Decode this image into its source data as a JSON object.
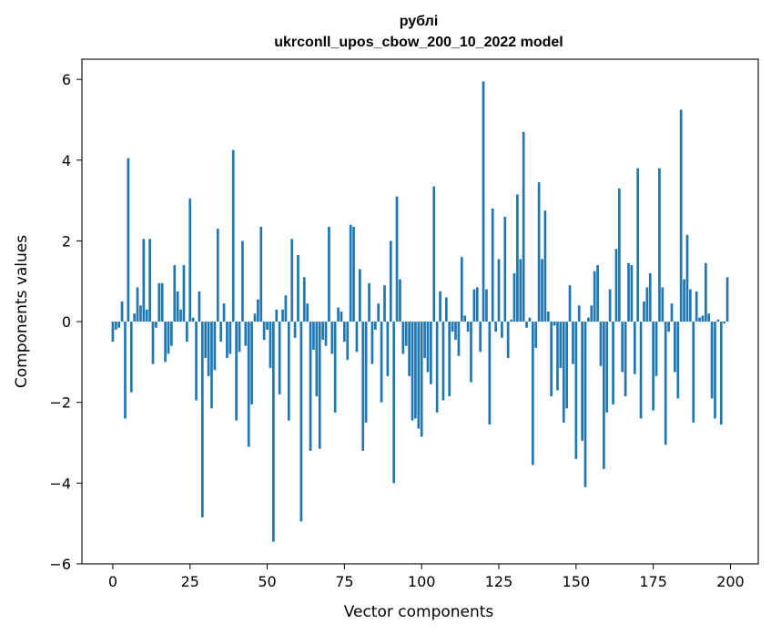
{
  "chart_data": {
    "type": "bar",
    "title": "рублі",
    "subtitle": "ukrconll_upos_cbow_200_10_2022 model",
    "xlabel": "Vector components",
    "ylabel": "Components values",
    "xlim": [
      -10,
      209
    ],
    "ylim": [
      -6,
      6.5
    ],
    "xticks": [
      0,
      25,
      50,
      75,
      100,
      125,
      150,
      175,
      200
    ],
    "yticks": [
      -6,
      -4,
      -2,
      0,
      2,
      4,
      6
    ],
    "bar_color": "#1f77b4",
    "grid": false,
    "x": [
      0,
      1,
      2,
      3,
      4,
      5,
      6,
      7,
      8,
      9,
      10,
      11,
      12,
      13,
      14,
      15,
      16,
      17,
      18,
      19,
      20,
      21,
      22,
      23,
      24,
      25,
      26,
      27,
      28,
      29,
      30,
      31,
      32,
      33,
      34,
      35,
      36,
      37,
      38,
      39,
      40,
      41,
      42,
      43,
      44,
      45,
      46,
      47,
      48,
      49,
      50,
      51,
      52,
      53,
      54,
      55,
      56,
      57,
      58,
      59,
      60,
      61,
      62,
      63,
      64,
      65,
      66,
      67,
      68,
      69,
      70,
      71,
      72,
      73,
      74,
      75,
      76,
      77,
      78,
      79,
      80,
      81,
      82,
      83,
      84,
      85,
      86,
      87,
      88,
      89,
      90,
      91,
      92,
      93,
      94,
      95,
      96,
      97,
      98,
      99,
      100,
      101,
      102,
      103,
      104,
      105,
      106,
      107,
      108,
      109,
      110,
      111,
      112,
      113,
      114,
      115,
      116,
      117,
      118,
      119,
      120,
      121,
      122,
      123,
      124,
      125,
      126,
      127,
      128,
      129,
      130,
      131,
      132,
      133,
      134,
      135,
      136,
      137,
      138,
      139,
      140,
      141,
      142,
      143,
      144,
      145,
      146,
      147,
      148,
      149,
      150,
      151,
      152,
      153,
      154,
      155,
      156,
      157,
      158,
      159,
      160,
      161,
      162,
      163,
      164,
      165,
      166,
      167,
      168,
      169,
      170,
      171,
      172,
      173,
      174,
      175,
      176,
      177,
      178,
      179,
      180,
      181,
      182,
      183,
      184,
      185,
      186,
      187,
      188,
      189,
      190,
      191,
      192,
      193,
      194,
      195,
      196,
      197,
      198,
      199
    ],
    "values": [
      -0.5,
      -0.2,
      -0.15,
      0.5,
      -2.4,
      4.05,
      -1.75,
      0.2,
      0.85,
      0.4,
      2.05,
      0.3,
      2.05,
      -1.05,
      -0.15,
      0.95,
      0.95,
      -1.0,
      -0.8,
      -0.6,
      1.4,
      0.75,
      0.3,
      1.4,
      -0.5,
      3.05,
      0.1,
      -1.95,
      0.75,
      -4.85,
      -0.9,
      -1.35,
      -2.15,
      -1.2,
      2.3,
      -0.5,
      0.45,
      -0.9,
      -0.8,
      4.25,
      -2.45,
      -0.75,
      2.0,
      -0.6,
      -3.1,
      -2.05,
      0.2,
      0.55,
      2.35,
      -0.45,
      -0.2,
      -1.15,
      -5.45,
      0.3,
      -1.8,
      0.3,
      0.65,
      -2.45,
      2.05,
      -0.4,
      1.65,
      -4.95,
      1.1,
      0.45,
      -3.2,
      -0.7,
      -1.85,
      -3.15,
      -0.45,
      -0.6,
      2.35,
      -0.8,
      -2.25,
      0.35,
      0.25,
      -0.5,
      -0.95,
      2.4,
      2.35,
      -0.75,
      1.3,
      -3.2,
      -2.5,
      0.95,
      -1.05,
      -0.2,
      0.45,
      -2.0,
      0.9,
      -1.35,
      2.0,
      -4.0,
      3.1,
      1.05,
      -0.8,
      -0.6,
      -1.35,
      -2.45,
      -2.4,
      -2.65,
      -2.85,
      -0.9,
      -1.25,
      -1.55,
      3.35,
      -2.25,
      0.75,
      -1.95,
      0.6,
      -1.85,
      -0.25,
      -0.45,
      -0.85,
      1.6,
      0.15,
      -0.25,
      -1.5,
      0.8,
      0.85,
      -0.75,
      5.95,
      0.8,
      -2.55,
      2.8,
      -0.25,
      1.55,
      -0.4,
      2.6,
      -0.9,
      0.05,
      1.2,
      3.15,
      1.55,
      4.7,
      -0.15,
      0.1,
      -3.55,
      -0.65,
      3.45,
      1.55,
      2.75,
      0.25,
      -1.85,
      -0.1,
      -1.7,
      -1.15,
      -2.5,
      -2.15,
      0.9,
      -1.05,
      -3.4,
      0.4,
      -2.95,
      -4.1,
      0.1,
      0.4,
      1.25,
      1.4,
      -1.1,
      -3.65,
      -2.25,
      0.8,
      -2.05,
      1.8,
      3.3,
      -1.25,
      -1.85,
      1.45,
      1.4,
      -1.3,
      3.8,
      -2.4,
      0.5,
      0.85,
      1.2,
      -2.2,
      -1.35,
      3.8,
      0.85,
      -3.05,
      -0.25,
      0.45,
      -1.25,
      -1.9,
      5.25,
      1.05,
      2.15,
      0.8,
      -2.5,
      0.75,
      0.1,
      0.15,
      1.45,
      0.2,
      -1.9,
      -2.4,
      0.05,
      -2.55,
      -0.05,
      1.1
    ]
  }
}
